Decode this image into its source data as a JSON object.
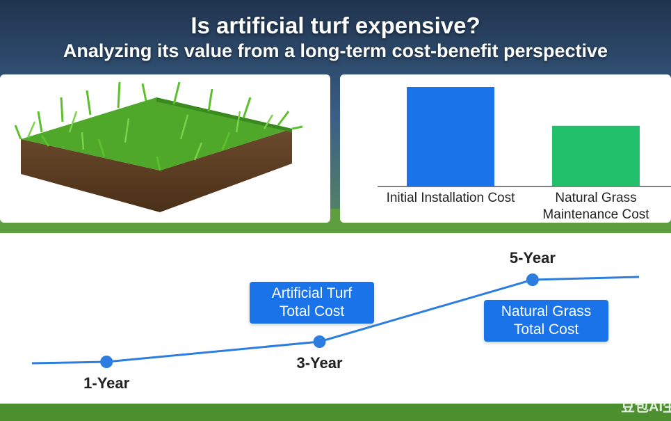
{
  "header": {
    "title": "Is artificial turf expensive?",
    "subtitle": "Analyzing its value from a long-term cost-benefit perspective"
  },
  "chart_data": [
    {
      "type": "bar",
      "categories": [
        "Initial Installation Cost",
        "Natural Grass Maintenance Cost"
      ],
      "values": [
        100,
        61
      ],
      "colors": [
        "#1a73e8",
        "#22c06b"
      ],
      "ylim": [
        0,
        100
      ]
    },
    {
      "type": "line",
      "x": [
        0.3,
        1,
        3,
        5,
        6
      ],
      "values": [
        19,
        20,
        34.5,
        79,
        81
      ],
      "point_labels": [
        null,
        "1-Year",
        "3-Year",
        "5-Year",
        null
      ],
      "xlim": [
        0,
        6.3
      ],
      "ylim": [
        0,
        100
      ],
      "color": "#2b7de0",
      "annotations": [
        {
          "text": "Artificial Turf Total Cost"
        },
        {
          "text": "Natural Grass Total Cost"
        }
      ]
    }
  ],
  "watermark": "豆包AI生"
}
